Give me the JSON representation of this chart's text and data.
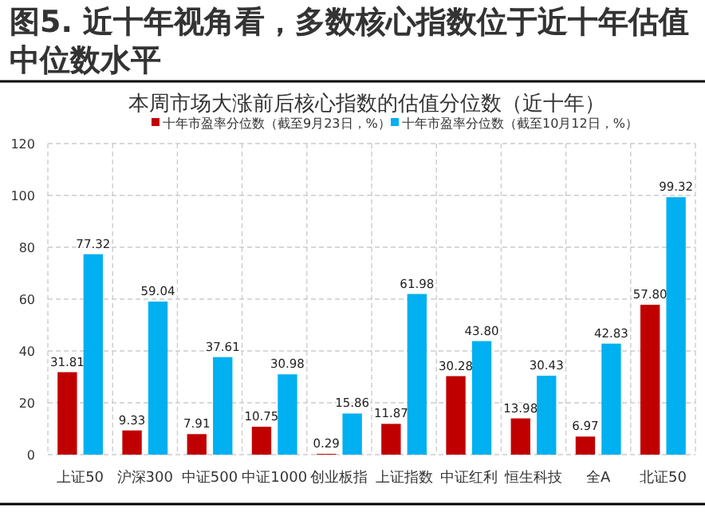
{
  "chart_data": {
    "type": "bar",
    "title": "图5. 近十年视角看，多数核心指数位于近十年估值中位数水平",
    "subtitle": "本周市场大涨前后核心指数的估值分位数（近十年）",
    "categories": [
      "上证50",
      "沪深300",
      "中证500",
      "中证1000",
      "创业板指",
      "上证指数",
      "中证红利",
      "恒生科技",
      "全A",
      "北证50"
    ],
    "series": [
      {
        "name": "十年市盈率分位数（截至9月23日，%）",
        "color": "#c00000",
        "values": [
          31.81,
          9.33,
          7.91,
          10.75,
          0.29,
          11.87,
          30.28,
          13.98,
          6.97,
          57.8
        ],
        "value_labels": [
          "31.81",
          "9.33",
          "7.91",
          "10.75",
          "0.29",
          "11.87",
          "30.28",
          "13.98",
          "6.97",
          "57.80"
        ]
      },
      {
        "name": "十年市盈率分位数（截至10月12日，%）",
        "color": "#00b0f0",
        "values": [
          77.32,
          59.04,
          37.61,
          30.98,
          15.86,
          61.98,
          43.8,
          30.43,
          42.83,
          99.32
        ],
        "value_labels": [
          "77.32",
          "59.04",
          "37.61",
          "30.98",
          "15.86",
          "61.98",
          "43.80",
          "30.43",
          "42.83",
          "99.32"
        ]
      }
    ],
    "ylim": [
      0,
      120
    ],
    "yticks": [
      0,
      20,
      40,
      60,
      80,
      100,
      120
    ],
    "grid": true,
    "legend": "top"
  }
}
